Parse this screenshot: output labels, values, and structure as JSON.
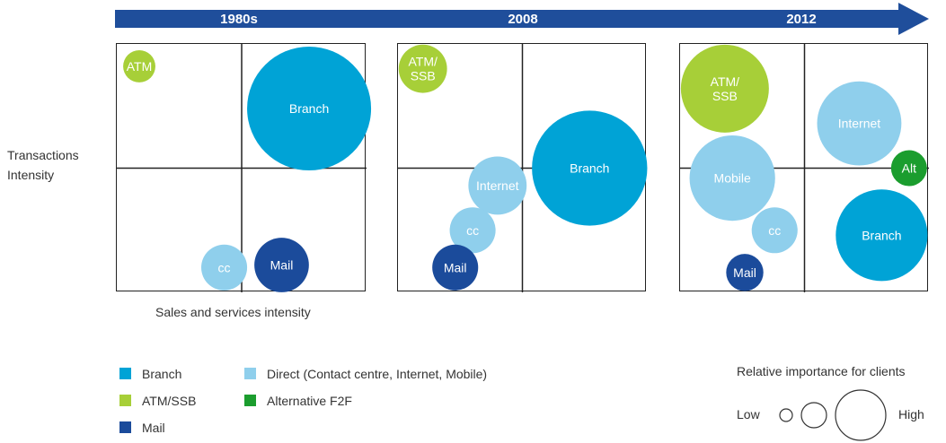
{
  "timeline": {
    "eras": [
      "1980s",
      "2008",
      "2012"
    ],
    "arrow_color": "#1f4e9b"
  },
  "axes": {
    "y_label_lines": [
      "Transactions",
      "Intensity"
    ],
    "x_label": "Sales and services intensity"
  },
  "colors": {
    "branch": "#00a3d6",
    "atm": "#a7cf38",
    "mail": "#1b4b9b",
    "direct": "#8fcfec",
    "alt": "#1b9d2e"
  },
  "chart_data": {
    "type": "bubble-matrix",
    "panels": [
      {
        "era": "1980s",
        "bubbles": [
          {
            "label": "ATM",
            "channel": "atm",
            "x": 0.09,
            "y": 0.91,
            "importance": 0.26
          },
          {
            "label": "Branch",
            "channel": "branch",
            "x": 0.77,
            "y": 0.74,
            "importance": 1.0
          },
          {
            "label": "cc",
            "channel": "direct",
            "x": 0.43,
            "y": 0.1,
            "importance": 0.37
          },
          {
            "label": "Mail",
            "channel": "mail",
            "x": 0.66,
            "y": 0.11,
            "importance": 0.44
          }
        ]
      },
      {
        "era": "2008",
        "bubbles": [
          {
            "label": "ATM/\nSSB",
            "channel": "atm",
            "x": 0.1,
            "y": 0.9,
            "importance": 0.39
          },
          {
            "label": "Branch",
            "channel": "branch",
            "x": 0.77,
            "y": 0.5,
            "importance": 0.93
          },
          {
            "label": "Internet",
            "channel": "direct",
            "x": 0.4,
            "y": 0.43,
            "importance": 0.47
          },
          {
            "label": "cc",
            "channel": "direct",
            "x": 0.3,
            "y": 0.25,
            "importance": 0.37
          },
          {
            "label": "Mail",
            "channel": "mail",
            "x": 0.23,
            "y": 0.1,
            "importance": 0.37
          }
        ]
      },
      {
        "era": "2012",
        "bubbles": [
          {
            "label": "ATM/\nSSB",
            "channel": "atm",
            "x": 0.18,
            "y": 0.82,
            "importance": 0.71
          },
          {
            "label": "Internet",
            "channel": "direct",
            "x": 0.72,
            "y": 0.68,
            "importance": 0.68
          },
          {
            "label": "Alt",
            "channel": "alt",
            "x": 0.92,
            "y": 0.5,
            "importance": 0.29
          },
          {
            "label": "Mail",
            "channel": "mail",
            "x": 0.26,
            "y": 0.08,
            "importance": 0.3
          },
          {
            "label": "Mobile",
            "channel": "direct",
            "x": 0.21,
            "y": 0.46,
            "importance": 0.69
          },
          {
            "label": "cc",
            "channel": "direct",
            "x": 0.38,
            "y": 0.25,
            "importance": 0.37
          },
          {
            "label": "Branch",
            "channel": "branch",
            "x": 0.81,
            "y": 0.23,
            "importance": 0.74
          }
        ]
      }
    ]
  },
  "legend": {
    "items": [
      {
        "label": "Branch",
        "channel": "branch"
      },
      {
        "label": "Direct (Contact centre, Internet, Mobile)",
        "channel": "direct"
      },
      {
        "label": "ATM/SSB",
        "channel": "atm"
      },
      {
        "label": "Alternative F2F",
        "channel": "alt"
      },
      {
        "label": "Mail",
        "channel": "mail"
      }
    ]
  },
  "size_legend": {
    "title": "Relative importance for clients",
    "low": "Low",
    "high": "High"
  }
}
